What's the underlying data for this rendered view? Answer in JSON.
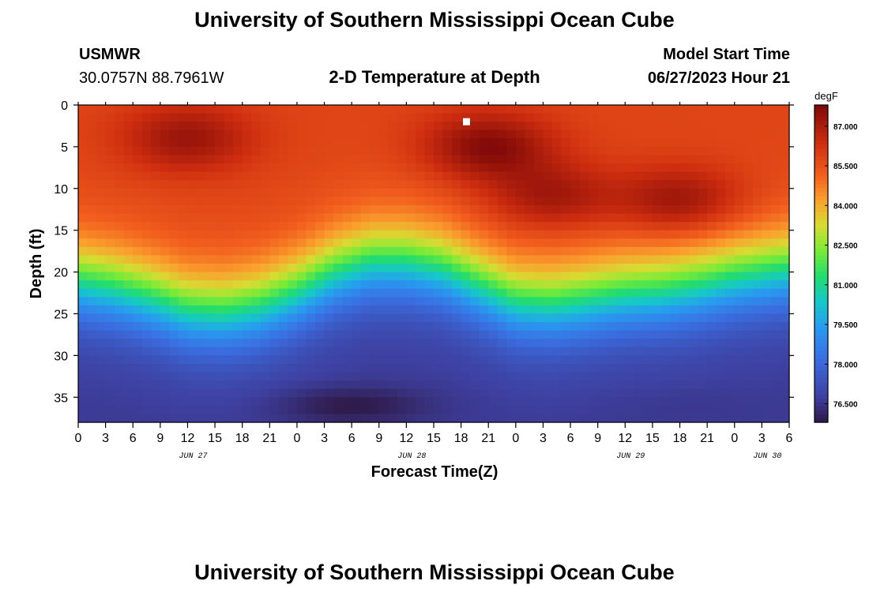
{
  "header": {
    "title": "University of Southern Mississippi Ocean Cube",
    "station_name": "USMWR",
    "station_coords": "30.0757N  88.7961W",
    "model_label": "Model Start Time",
    "model_time": "06/27/2023 Hour 21"
  },
  "footer": {
    "title": "University of Southern Mississippi Ocean Cube"
  },
  "chart_data": {
    "type": "heatmap",
    "title": "2-D Temperature at Depth",
    "xlabel": "Forecast Time(Z)",
    "ylabel": "Depth (ft)",
    "x_range_hours": [
      0,
      78
    ],
    "ylim": [
      0,
      38
    ],
    "x_tick_hours": [
      0,
      3,
      6,
      9,
      12,
      15,
      18,
      21,
      24,
      27,
      30,
      33,
      36,
      39,
      42,
      45,
      48,
      51,
      54,
      57,
      60,
      63,
      66,
      69,
      72,
      75,
      78
    ],
    "x_tick_labels": [
      "0",
      "3",
      "6",
      "9",
      "12",
      "15",
      "18",
      "21",
      "0",
      "3",
      "6",
      "9",
      "12",
      "15",
      "18",
      "21",
      "0",
      "3",
      "6",
      "9",
      "12",
      "15",
      "18",
      "21",
      "0",
      "3",
      "6"
    ],
    "date_labels": [
      {
        "hour": 12,
        "label": "JUN 27"
      },
      {
        "hour": 36,
        "label": "JUN 28"
      },
      {
        "hour": 60,
        "label": "JUN 29"
      },
      {
        "hour": 75,
        "label": "JUN 30"
      }
    ],
    "y_ticks": [
      0,
      5,
      10,
      15,
      20,
      25,
      30,
      35
    ],
    "y_tick_labels": [
      "0",
      "5",
      "10",
      "15",
      "20",
      "25",
      "30",
      "35"
    ],
    "colorbar": {
      "unit": "degF",
      "vmin": 75.8,
      "vmax": 87.8,
      "ticks": [
        76.5,
        78.0,
        79.5,
        81.0,
        82.5,
        84.0,
        85.5,
        87.0
      ],
      "tick_labels": [
        "76.500",
        "78.000",
        "79.500",
        "81.000",
        "82.500",
        "84.000",
        "85.500",
        "87.000"
      ]
    },
    "thermocline_depth_ft": {
      "hours": [
        0,
        4,
        8,
        12,
        16,
        20,
        24,
        28,
        32,
        36,
        40,
        44,
        48,
        52,
        56,
        60,
        64,
        68,
        72,
        76,
        78
      ],
      "values": [
        21,
        21.8,
        23,
        24.5,
        24.8,
        24,
        22.3,
        20,
        18.6,
        18.6,
        19.5,
        21.5,
        23.5,
        23.8,
        23.2,
        22.5,
        22.2,
        21.5,
        20.5,
        19.8,
        19.5
      ]
    },
    "warm_cores": [
      {
        "hour": 12,
        "depth_ft": 4,
        "temp_degF": 87.3
      },
      {
        "hour": 45,
        "depth_ft": 5,
        "temp_degF": 87.7
      },
      {
        "hour": 52,
        "depth_ft": 11,
        "temp_degF": 87.2
      },
      {
        "hour": 66,
        "depth_ft": 11.5,
        "temp_degF": 87.4
      }
    ],
    "cold_cores": [
      {
        "hour": 30,
        "depth_ft": 36,
        "temp_degF": 75.8
      },
      {
        "hour": 66,
        "depth_ft": 36,
        "temp_degF": 76.5
      }
    ],
    "surface_temp_degF": 85.8,
    "bottom_temp_degF": 76.6,
    "current_time_marker": {
      "hour": 42.6,
      "depth_ft": 2
    }
  }
}
